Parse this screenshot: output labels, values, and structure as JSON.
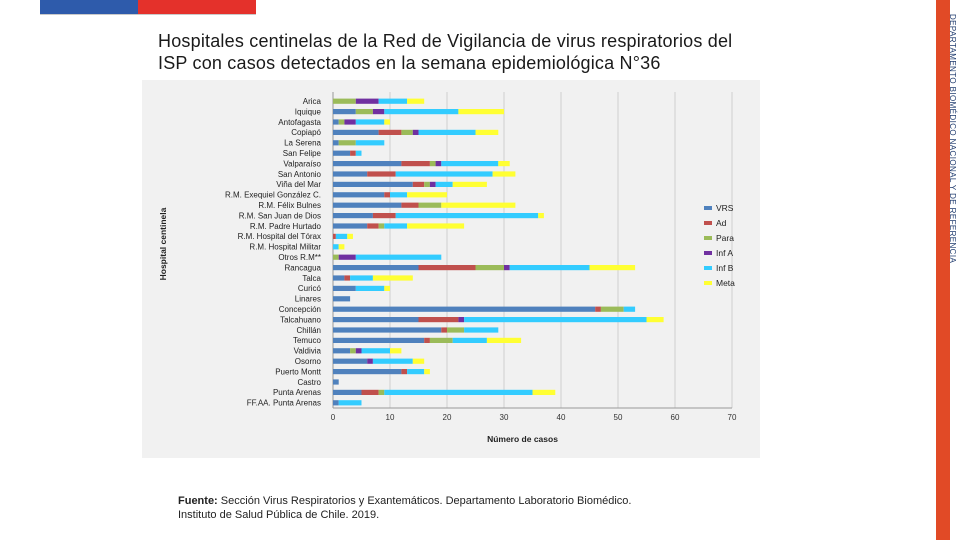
{
  "slide": {
    "title_line1": "Hospitales centinelas de la Red de Vigilancia de virus respiratorios del",
    "title_line2": "ISP con casos detectados en la semana epidemiológica N°36",
    "side_label": "DEPARTAMENTO BIOMÉDICO NACIONAL Y DE REFERENCIA",
    "source_label": "Fuente:",
    "source_text_1": "Sección Virus Respiratorios y Exantemáticos. Departamento Laboratorio Biomédico.",
    "source_text_2": "Instituto de Salud Pública de Chile. 2019."
  },
  "colors": {
    "VRS": "#4f81bd",
    "Ad": "#c0504d",
    "Para": "#9bbb59",
    "Inf A": "#7030a0",
    "Inf B": "#33ccff",
    "Meta": "#ffff33"
  },
  "chart_data": {
    "type": "bar",
    "orientation": "horizontal",
    "stacked": true,
    "title": "",
    "xlabel": "Número de casos",
    "ylabel": "Hospital centinela",
    "xlim": [
      0,
      70
    ],
    "xticks": [
      0,
      10,
      20,
      30,
      40,
      50,
      60,
      70
    ],
    "grid": "vertical",
    "legend": "right",
    "categories": [
      "Arica",
      "Iquique",
      "Antofagasta",
      "Copiapó",
      "La Serena",
      "San Felipe",
      "Valparaíso",
      "San Antonio",
      "Viña del Mar",
      "R.M. Exequiel González C.",
      "R.M. Félix Bulnes",
      "R.M. San Juan de Dios",
      "R.M. Padre Hurtado",
      "R.M. Hospital del Tórax",
      "R.M. Hospital Militar",
      "Otros R.M**",
      "Rancagua",
      "Talca",
      "Curicó",
      "Linares",
      "Concepción",
      "Talcahuano",
      "Chillán",
      "Temuco",
      "Valdivia",
      "Osorno",
      "Puerto Montt",
      "Castro",
      "Punta Arenas",
      "FF.AA. Punta Arenas"
    ],
    "series": [
      {
        "name": "VRS",
        "values": [
          0,
          4,
          1,
          8,
          1,
          3,
          12,
          6,
          14,
          9,
          12,
          7,
          6,
          0,
          0,
          0,
          15,
          2,
          4,
          3,
          46,
          15,
          19,
          16,
          3,
          6,
          12,
          1,
          5,
          1
        ]
      },
      {
        "name": "Ad",
        "values": [
          0,
          0,
          0,
          4,
          0,
          1,
          5,
          5,
          2,
          1,
          3,
          4,
          2,
          0.5,
          0,
          0,
          10,
          1,
          0,
          0,
          1,
          7,
          1,
          1,
          0,
          0,
          1,
          0,
          3,
          0
        ]
      },
      {
        "name": "Para",
        "values": [
          4,
          3,
          1,
          2,
          3,
          0,
          1,
          0,
          1,
          0,
          4,
          0,
          1,
          0,
          0,
          1,
          5,
          0,
          0,
          0,
          4,
          0,
          3,
          4,
          1,
          0,
          0,
          0,
          1,
          0
        ]
      },
      {
        "name": "Inf A",
        "values": [
          4,
          2,
          2,
          1,
          0,
          0,
          1,
          0,
          1,
          0,
          0,
          0,
          0,
          0,
          0,
          3,
          1,
          0,
          0,
          0,
          0,
          1,
          0,
          0,
          1,
          1,
          0,
          0,
          0,
          0
        ]
      },
      {
        "name": "Inf B",
        "values": [
          5,
          13,
          5,
          10,
          5,
          1,
          10,
          17,
          3,
          3,
          0,
          25,
          4,
          2,
          1,
          15,
          14,
          4,
          5,
          0,
          2,
          32,
          6,
          6,
          5,
          7,
          3,
          0,
          26,
          4
        ]
      },
      {
        "name": "Meta",
        "values": [
          3,
          8,
          1,
          4,
          0,
          0,
          2,
          4,
          6,
          7,
          13,
          1,
          10,
          1,
          1,
          0,
          8,
          7,
          1,
          0,
          0,
          3,
          0,
          6,
          2,
          2,
          1,
          0,
          4,
          0
        ]
      }
    ]
  }
}
